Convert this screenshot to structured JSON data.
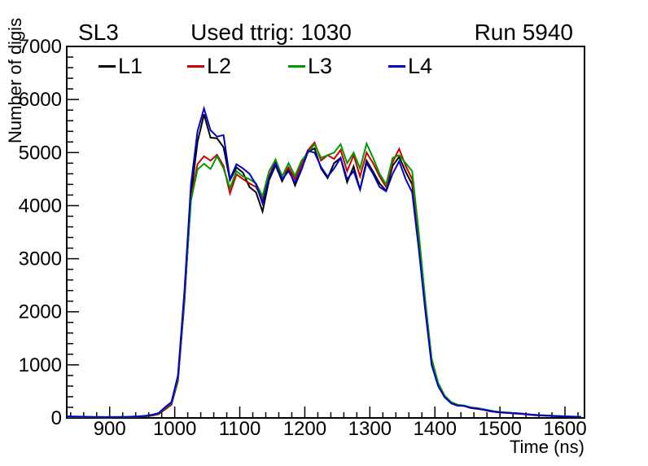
{
  "header": {
    "left": "SL3",
    "title": "Used ttrig: 1030",
    "right": "Run 5940"
  },
  "legend": {
    "position": "top-inside",
    "entries": [
      {
        "label": "L1",
        "color": "#000000"
      },
      {
        "label": "L2",
        "color": "#cc0000"
      },
      {
        "label": "L3",
        "color": "#009900"
      },
      {
        "label": "L4",
        "color": "#0000cc"
      }
    ]
  },
  "axes": {
    "x": {
      "title": "Time (ns)",
      "min": 834,
      "max": 1630,
      "major_ticks": [
        900,
        1000,
        1100,
        1200,
        1300,
        1400,
        1500,
        1600
      ],
      "minor_step": 20
    },
    "y": {
      "title": "Number of digis",
      "min": 0,
      "max": 7000,
      "major_ticks": [
        0,
        1000,
        2000,
        3000,
        4000,
        5000,
        6000,
        7000
      ],
      "minor_step": 200
    }
  },
  "colors": {
    "frame": "#000000",
    "background": "#ffffff"
  },
  "chart_data": {
    "type": "line",
    "title": "Used ttrig: 1030",
    "xlabel": "Time (ns)",
    "ylabel": "Number of digis",
    "xlim": [
      834,
      1630
    ],
    "ylim": [
      0,
      7000
    ],
    "grid": false,
    "legend_position": "top-inside",
    "x": [
      835,
      845,
      855,
      865,
      875,
      885,
      895,
      905,
      915,
      925,
      935,
      945,
      955,
      965,
      975,
      985,
      995,
      1005,
      1015,
      1025,
      1035,
      1045,
      1055,
      1065,
      1075,
      1085,
      1095,
      1105,
      1115,
      1125,
      1135,
      1145,
      1155,
      1165,
      1175,
      1185,
      1195,
      1205,
      1215,
      1225,
      1235,
      1245,
      1255,
      1265,
      1275,
      1285,
      1295,
      1305,
      1315,
      1325,
      1335,
      1345,
      1355,
      1365,
      1375,
      1385,
      1395,
      1405,
      1415,
      1425,
      1435,
      1445,
      1455,
      1465,
      1475,
      1485,
      1495,
      1505,
      1515,
      1525,
      1535,
      1545,
      1555,
      1565,
      1575,
      1585,
      1595,
      1605,
      1615,
      1625
    ],
    "series": [
      {
        "name": "L1",
        "color": "#000000",
        "values": [
          25,
          22,
          20,
          18,
          16,
          15,
          14,
          14,
          15,
          16,
          18,
          22,
          30,
          45,
          70,
          160,
          250,
          700,
          2200,
          4200,
          5200,
          5720,
          5280,
          5270,
          5100,
          4480,
          4720,
          4620,
          4350,
          4250,
          3890,
          4480,
          4760,
          4460,
          4700,
          4380,
          4680,
          5020,
          5080,
          4700,
          4520,
          4800,
          4900,
          4440,
          4740,
          4300,
          4850,
          4640,
          4420,
          4280,
          4750,
          4920,
          4640,
          4400,
          3300,
          2100,
          1050,
          620,
          400,
          280,
          235,
          230,
          195,
          180,
          160,
          135,
          115,
          105,
          95,
          88,
          78,
          65,
          55,
          48,
          42,
          37,
          32,
          27,
          23,
          20
        ]
      },
      {
        "name": "L2",
        "color": "#cc0000",
        "values": [
          20,
          20,
          18,
          17,
          15,
          14,
          14,
          14,
          15,
          17,
          19,
          23,
          32,
          48,
          75,
          170,
          260,
          720,
          2250,
          4150,
          4780,
          4930,
          4850,
          4960,
          4750,
          4230,
          4590,
          4500,
          4420,
          4350,
          4120,
          4550,
          4850,
          4560,
          4720,
          4500,
          4780,
          5050,
          5190,
          4850,
          4950,
          4880,
          5050,
          4650,
          4950,
          4550,
          5000,
          4800,
          4550,
          4350,
          4820,
          5070,
          4750,
          4500,
          3400,
          2150,
          1080,
          640,
          410,
          290,
          240,
          225,
          185,
          170,
          150,
          125,
          108,
          98,
          90,
          82,
          72,
          60,
          50,
          44,
          38,
          34,
          29,
          25,
          21,
          18
        ]
      },
      {
        "name": "L3",
        "color": "#009900",
        "values": [
          18,
          18,
          17,
          16,
          15,
          14,
          13,
          14,
          15,
          17,
          20,
          25,
          35,
          55,
          85,
          190,
          280,
          750,
          2300,
          4100,
          4680,
          4790,
          4690,
          4930,
          4700,
          4330,
          4650,
          4550,
          4500,
          4420,
          4180,
          4650,
          4870,
          4550,
          4800,
          4560,
          4850,
          5000,
          5160,
          4900,
          4950,
          5000,
          5160,
          4800,
          5000,
          4700,
          5170,
          4900,
          4600,
          4400,
          4900,
          4950,
          4800,
          4650,
          3500,
          2250,
          1120,
          660,
          420,
          300,
          250,
          235,
          200,
          185,
          165,
          140,
          118,
          108,
          98,
          90,
          80,
          68,
          58,
          50,
          44,
          38,
          33,
          28,
          25,
          21
        ]
      },
      {
        "name": "L4",
        "color": "#0000cc",
        "values": [
          30,
          28,
          25,
          22,
          20,
          18,
          17,
          17,
          18,
          20,
          24,
          30,
          40,
          60,
          90,
          200,
          300,
          800,
          2400,
          4400,
          5400,
          5830,
          5420,
          5300,
          5330,
          4500,
          4780,
          4700,
          4600,
          4400,
          4040,
          4520,
          4800,
          4500,
          4650,
          4430,
          4700,
          5030,
          5000,
          4730,
          4545,
          4700,
          4900,
          4500,
          4650,
          4300,
          4800,
          4600,
          4350,
          4270,
          4600,
          4836,
          4500,
          4250,
          3200,
          2050,
          1000,
          600,
          390,
          275,
          230,
          225,
          190,
          175,
          155,
          130,
          112,
          102,
          93,
          86,
          76,
          64,
          54,
          47,
          41,
          36,
          31,
          26,
          22,
          19
        ]
      }
    ]
  }
}
